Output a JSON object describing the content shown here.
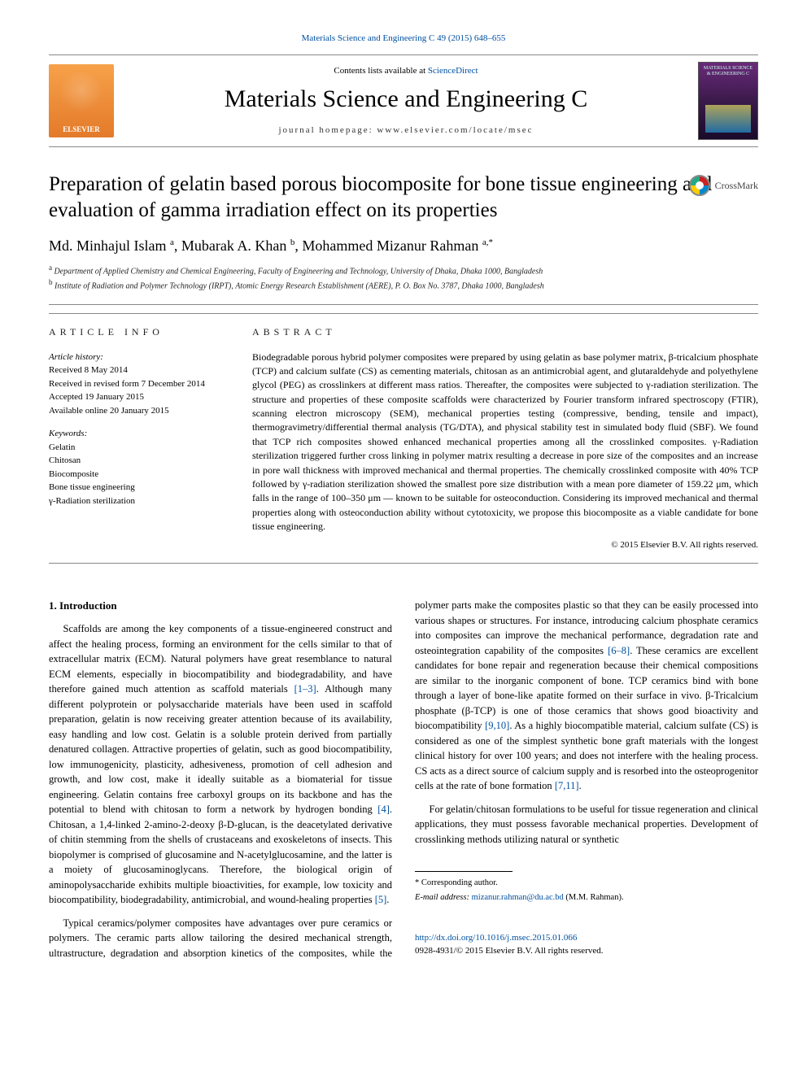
{
  "top_citation_link": "Materials Science and Engineering C 49 (2015) 648–655",
  "header": {
    "contents_prefix": "Contents lists available at ",
    "contents_link": "ScienceDirect",
    "journal_name": "Materials Science and Engineering C",
    "homepage_prefix": "journal homepage: ",
    "homepage_url": "www.elsevier.com/locate/msec",
    "publisher_logo_label": "ELSEVIER",
    "cover_text": "MATERIALS SCIENCE & ENGINEERING C"
  },
  "crossmark_label": "CrossMark",
  "title": "Preparation of gelatin based porous biocomposite for bone tissue engineering and evaluation of gamma irradiation effect on its properties",
  "authors_html": "Md. Minhajul Islam <sup>a</sup>, Mubarak A. Khan <sup>b</sup>, Mohammed Mizanur Rahman <sup>a,*</sup>",
  "affiliations": {
    "a": "Department of Applied Chemistry and Chemical Engineering, Faculty of Engineering and Technology, University of Dhaka, Dhaka 1000, Bangladesh",
    "b": "Institute of Radiation and Polymer Technology (IRPT), Atomic Energy Research Establishment (AERE), P. O. Box No. 3787, Dhaka 1000, Bangladesh"
  },
  "article_info": {
    "head": "ARTICLE INFO",
    "history_label": "Article history:",
    "received": "Received 8 May 2014",
    "revised": "Received in revised form 7 December 2014",
    "accepted": "Accepted 19 January 2015",
    "online": "Available online 20 January 2015",
    "keywords_label": "Keywords:",
    "keywords": [
      "Gelatin",
      "Chitosan",
      "Biocomposite",
      "Bone tissue engineering",
      "γ-Radiation sterilization"
    ]
  },
  "abstract": {
    "head": "ABSTRACT",
    "text": "Biodegradable porous hybrid polymer composites were prepared by using gelatin as base polymer matrix, β-tricalcium phosphate (TCP) and calcium sulfate (CS) as cementing materials, chitosan as an antimicrobial agent, and glutaraldehyde and polyethylene glycol (PEG) as crosslinkers at different mass ratios. Thereafter, the composites were subjected to γ-radiation sterilization. The structure and properties of these composite scaffolds were characterized by Fourier transform infrared spectroscopy (FTIR), scanning electron microscopy (SEM), mechanical properties testing (compressive, bending, tensile and impact), thermogravimetry/differential thermal analysis (TG/DTA), and physical stability test in simulated body fluid (SBF). We found that TCP rich composites showed enhanced mechanical properties among all the crosslinked composites. γ-Radiation sterilization triggered further cross linking in polymer matrix resulting a decrease in pore size of the composites and an increase in pore wall thickness with improved mechanical and thermal properties. The chemically crosslinked composite with 40% TCP followed by γ-radiation sterilization showed the smallest pore size distribution with a mean pore diameter of 159.22 μm, which falls in the range of 100–350 μm — known to be suitable for osteoconduction. Considering its improved mechanical and thermal properties along with osteoconduction ability without cytotoxicity, we propose this biocomposite as a viable candidate for bone tissue engineering.",
    "copyright": "© 2015 Elsevier B.V. All rights reserved."
  },
  "section1": {
    "head": "1. Introduction",
    "p1": "Scaffolds are among the key components of a tissue-engineered construct and affect the healing process, forming an environment for the cells similar to that of extracellular matrix (ECM). Natural polymers have great resemblance to natural ECM elements, especially in biocompatibility and biodegradability, and have therefore gained much attention as scaffold materials ",
    "p1_ref": "[1–3]",
    "p1b": ". Although many different polyprotein or polysaccharide materials have been used in scaffold preparation, gelatin is now receiving greater attention because of its availability, easy handling and low cost. Gelatin is a soluble protein derived from partially denatured collagen. Attractive properties of gelatin, such as good biocompatibility, low immunogenicity, plasticity, adhesiveness, promotion of cell adhesion and growth, and low cost, make it ideally suitable as a biomaterial for tissue engineering. Gelatin contains free carboxyl groups on its backbone and has the potential to blend with chitosan to form a network by hydrogen bonding ",
    "p1_ref2": "[4]",
    "p1c": ". Chitosan, a 1,4-linked 2-amino-2-deoxy β-D-glucan, is the deacetylated derivative of chitin stemming from the shells of crustaceans and exoskeletons of insects. This biopolymer is comprised of glucosamine and N-acetylglucosamine, and the latter is a moiety of glucosaminoglycans. Therefore, the biological origin of aminopolysaccharide exhibits multiple bioactivities, for example, low toxicity and biocompatibility, biodegradability, antimicrobial, and wound-healing properties ",
    "p1_ref3": "[5]",
    "p1d": ".",
    "p2a": "Typical ceramics/polymer composites have advantages over pure ceramics or polymers. The ceramic parts allow tailoring the desired mechanical strength, ultrastructure, degradation and absorption kinetics of the composites, while the polymer parts make the composites plastic so that they can be easily processed into various shapes or structures. For instance, introducing calcium phosphate ceramics into composites can improve the mechanical performance, degradation rate and osteointegration capability of the composites ",
    "p2_ref1": "[6–8]",
    "p2b": ". These ceramics are excellent candidates for bone repair and regeneration because their chemical compositions are similar to the inorganic component of bone. TCP ceramics bind with bone through a layer of bone-like apatite formed on their surface in vivo. β-Tricalcium phosphate (β-TCP) is one of those ceramics that shows good bioactivity and biocompatibility ",
    "p2_ref2": "[9,10]",
    "p2c": ". As a highly biocompatible material, calcium sulfate (CS) is considered as one of the simplest synthetic bone graft materials with the longest clinical history for over 100 years; and does not interfere with the healing process. CS acts as a direct source of calcium supply and is resorbed into the osteoprogenitor cells at the rate of bone formation ",
    "p2_ref3": "[7,11]",
    "p2d": ".",
    "p3": "For gelatin/chitosan formulations to be useful for tissue regeneration and clinical applications, they must possess favorable mechanical properties. Development of crosslinking methods utilizing natural or synthetic"
  },
  "footer": {
    "corr_marker": "* Corresponding author.",
    "email_label": "E-mail address: ",
    "email": "mizanur.rahman@du.ac.bd",
    "email_suffix": " (M.M. Rahman).",
    "doi": "http://dx.doi.org/10.1016/j.msec.2015.01.066",
    "issn_line": "0928-4931/© 2015 Elsevier B.V. All rights reserved."
  }
}
